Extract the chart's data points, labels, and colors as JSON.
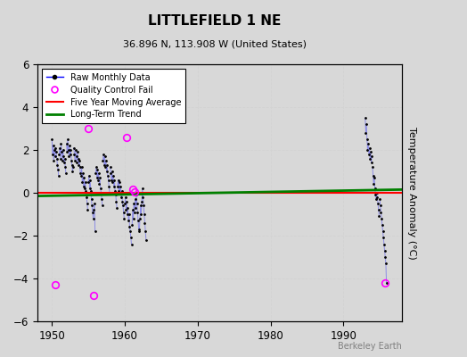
{
  "title": "LITTLEFIELD 1 NE",
  "subtitle": "36.896 N, 113.908 W (United States)",
  "ylabel": "Temperature Anomaly (°C)",
  "credit": "Berkeley Earth",
  "xlim": [
    1948,
    1998
  ],
  "ylim": [
    -6,
    6
  ],
  "xticks": [
    1950,
    1960,
    1970,
    1980,
    1990
  ],
  "yticks": [
    -6,
    -4,
    -2,
    0,
    2,
    4,
    6
  ],
  "bg_color": "#d8d8d8",
  "early_years": [
    1950,
    1951,
    1952,
    1953,
    1954,
    1955,
    1956,
    1957,
    1958,
    1959,
    1960,
    1961,
    1962
  ],
  "early_monthly": [
    [
      2.5,
      1.8,
      2.2,
      1.5,
      2.0,
      1.7,
      2.1,
      1.9,
      1.6,
      1.3,
      1.1,
      0.8
    ],
    [
      1.8,
      2.1,
      1.6,
      2.3,
      1.9,
      1.5,
      2.0,
      1.7,
      1.4,
      1.6,
      1.2,
      0.9
    ],
    [
      2.3,
      1.9,
      2.5,
      2.0,
      1.7,
      2.2,
      1.8,
      2.0,
      1.5,
      1.3,
      1.0,
      1.2
    ],
    [
      2.1,
      1.8,
      1.5,
      2.0,
      1.7,
      1.4,
      1.9,
      1.6,
      1.3,
      1.5,
      1.2,
      0.9
    ],
    [
      0.8,
      1.2,
      0.5,
      0.9,
      0.3,
      0.7,
      0.2,
      0.5,
      0.1,
      -0.2,
      -0.5,
      -0.8
    ],
    [
      0.5,
      0.8,
      0.2,
      0.6,
      0.1,
      -0.3,
      -0.6,
      -0.9,
      -1.2,
      -0.8,
      -0.5,
      -1.8
    ],
    [
      0.9,
      1.2,
      0.7,
      1.1,
      0.6,
      0.9,
      0.4,
      0.7,
      0.2,
      0.0,
      -0.3,
      -0.6
    ],
    [
      1.5,
      1.8,
      1.3,
      1.7,
      1.2,
      1.5,
      1.0,
      1.3,
      0.8,
      0.6,
      0.3,
      0.0
    ],
    [
      1.2,
      0.9,
      0.6,
      1.0,
      0.5,
      0.8,
      0.3,
      0.6,
      0.1,
      -0.1,
      -0.4,
      -0.7
    ],
    [
      0.3,
      0.6,
      0.1,
      0.5,
      0.0,
      0.3,
      -0.2,
      0.1,
      -0.4,
      -0.6,
      -0.9,
      -1.2
    ],
    [
      -0.5,
      -0.2,
      -0.8,
      -0.4,
      -1.0,
      -0.7,
      -1.3,
      -1.0,
      -1.6,
      -1.8,
      -2.1,
      -2.4
    ],
    [
      -1.5,
      -0.8,
      -1.2,
      -0.5,
      -0.9,
      -0.3,
      -0.7,
      -0.1,
      -0.5,
      -0.9,
      -1.3,
      -1.7
    ],
    [
      -1.8,
      -1.2,
      -0.6,
      -1.0,
      -0.4,
      0.2,
      -0.2,
      -0.6,
      -1.0,
      -1.4,
      -1.8,
      -2.2
    ]
  ],
  "late_years": [
    1993,
    1994,
    1995
  ],
  "late_monthly": [
    [
      3.5,
      2.8,
      3.2,
      2.5,
      2.0,
      2.3,
      1.8,
      2.1,
      1.6,
      1.9,
      1.4,
      1.7
    ],
    [
      1.2,
      0.8,
      0.4,
      0.7,
      0.2,
      -0.1,
      -0.3,
      0.0,
      -0.2,
      -0.5,
      -0.8,
      -1.1
    ],
    [
      -0.3,
      -0.6,
      -0.9,
      -1.2,
      -1.5,
      -1.8,
      -2.1,
      -2.4,
      -2.7,
      -3.0,
      -3.3,
      -4.2
    ]
  ],
  "qc_points": [
    [
      1950.5,
      -4.3
    ],
    [
      1955.0,
      3.0
    ],
    [
      1955.75,
      -4.8
    ],
    [
      1960.2,
      2.6
    ],
    [
      1961.1,
      0.15
    ],
    [
      1961.3,
      0.05
    ],
    [
      1995.75,
      -4.2
    ]
  ],
  "long_term_trend": {
    "x": [
      1948,
      1998
    ],
    "y": [
      -0.15,
      0.15
    ]
  },
  "five_year_avg": {
    "x": [
      1948,
      1998
    ],
    "y": [
      0.0,
      0.0
    ]
  }
}
